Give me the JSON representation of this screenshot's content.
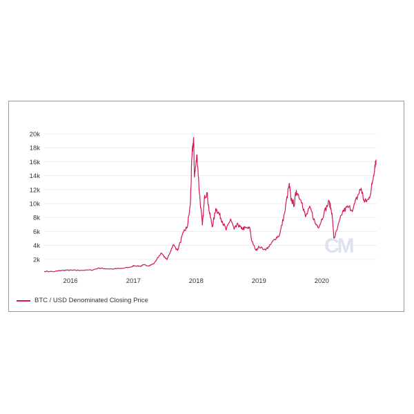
{
  "colors": {
    "series": "#d4184f",
    "watermark": "#dde2f0"
  },
  "watermark": "CM",
  "legend": {
    "label": "BTC / USD Denominated Closing Price"
  },
  "chart_data": {
    "type": "line",
    "title": "",
    "xlabel": "",
    "ylabel": "",
    "ylim": [
      0,
      20000
    ],
    "y_ticks": [
      "2k",
      "4k",
      "6k",
      "8k",
      "10k",
      "12k",
      "14k",
      "16k",
      "18k",
      "20k"
    ],
    "x_ticks": [
      "2016",
      "2017",
      "2018",
      "2019",
      "2020"
    ],
    "grid": true,
    "legend_position": "bottom-left",
    "series": [
      {
        "name": "BTC / USD Denominated Closing Price",
        "points": [
          [
            "2015-08-01",
            280
          ],
          [
            "2015-10-01",
            240
          ],
          [
            "2015-11-05",
            400
          ],
          [
            "2015-12-15",
            440
          ],
          [
            "2016-01-15",
            420
          ],
          [
            "2016-03-01",
            430
          ],
          [
            "2016-05-01",
            450
          ],
          [
            "2016-06-16",
            740
          ],
          [
            "2016-07-15",
            660
          ],
          [
            "2016-09-01",
            610
          ],
          [
            "2016-11-01",
            700
          ],
          [
            "2016-12-20",
            900
          ],
          [
            "2017-01-04",
            1100
          ],
          [
            "2017-02-10",
            1000
          ],
          [
            "2017-03-01",
            1200
          ],
          [
            "2017-04-01",
            1080
          ],
          [
            "2017-05-01",
            1400
          ],
          [
            "2017-06-10",
            2900
          ],
          [
            "2017-07-15",
            1950
          ],
          [
            "2017-08-20",
            4100
          ],
          [
            "2017-09-15",
            3300
          ],
          [
            "2017-10-20",
            5900
          ],
          [
            "2017-11-10",
            6600
          ],
          [
            "2017-11-28",
            9800
          ],
          [
            "2017-12-07",
            16500
          ],
          [
            "2017-12-17",
            19500
          ],
          [
            "2017-12-22",
            13800
          ],
          [
            "2018-01-06",
            17000
          ],
          [
            "2018-01-20",
            11500
          ],
          [
            "2018-02-06",
            6900
          ],
          [
            "2018-02-20",
            11200
          ],
          [
            "2018-03-05",
            11500
          ],
          [
            "2018-03-20",
            8500
          ],
          [
            "2018-04-06",
            6700
          ],
          [
            "2018-04-25",
            9300
          ],
          [
            "2018-05-15",
            8500
          ],
          [
            "2018-06-01",
            7500
          ],
          [
            "2018-06-25",
            6200
          ],
          [
            "2018-07-20",
            7800
          ],
          [
            "2018-08-10",
            6300
          ],
          [
            "2018-09-01",
            7000
          ],
          [
            "2018-09-20",
            6400
          ],
          [
            "2018-10-15",
            6500
          ],
          [
            "2018-11-10",
            6400
          ],
          [
            "2018-11-20",
            4600
          ],
          [
            "2018-12-15",
            3300
          ],
          [
            "2019-01-01",
            3800
          ],
          [
            "2019-02-07",
            3400
          ],
          [
            "2019-03-01",
            3800
          ],
          [
            "2019-04-02",
            4900
          ],
          [
            "2019-05-01",
            5500
          ],
          [
            "2019-05-30",
            8600
          ],
          [
            "2019-06-26",
            12800
          ],
          [
            "2019-07-05",
            10800
          ],
          [
            "2019-07-25",
            9800
          ],
          [
            "2019-08-06",
            11900
          ],
          [
            "2019-09-10",
            10100
          ],
          [
            "2019-09-28",
            8100
          ],
          [
            "2019-10-26",
            9400
          ],
          [
            "2019-11-25",
            7100
          ],
          [
            "2019-12-17",
            6700
          ],
          [
            "2020-01-15",
            8700
          ],
          [
            "2020-02-13",
            10300
          ],
          [
            "2020-03-01",
            8600
          ],
          [
            "2020-03-12",
            4900
          ],
          [
            "2020-04-01",
            6400
          ],
          [
            "2020-05-01",
            8800
          ],
          [
            "2020-06-01",
            9500
          ],
          [
            "2020-07-01",
            9200
          ],
          [
            "2020-07-28",
            11100
          ],
          [
            "2020-08-17",
            12200
          ],
          [
            "2020-09-05",
            10200
          ],
          [
            "2020-10-01",
            10600
          ],
          [
            "2020-10-21",
            12800
          ],
          [
            "2020-11-05",
            15500
          ],
          [
            "2020-11-12",
            16300
          ]
        ]
      }
    ]
  }
}
